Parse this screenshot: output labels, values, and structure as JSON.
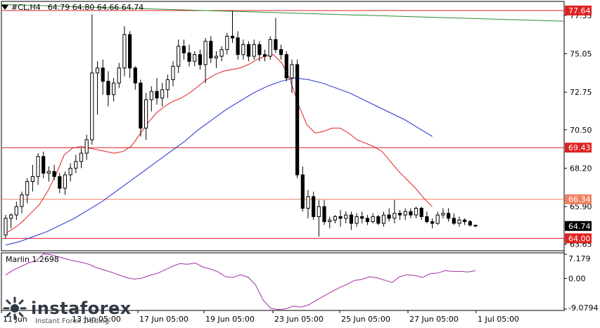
{
  "header": {
    "symbol": "#CL,H4",
    "ohlc": "64.79 64.80 64.66 64.74"
  },
  "price_scale": {
    "ticks": [
      "77.35",
      "75.05",
      "72.75",
      "70.50",
      "68.20",
      "65.90",
      "63.65"
    ],
    "ind_ticks": [
      "7.179",
      "0.00",
      "-9.0794"
    ],
    "badges": [
      {
        "label": "77.64",
        "value": 77.64,
        "color": "#e02020"
      },
      {
        "label": "69.43",
        "value": 69.43,
        "color": "#e02020"
      },
      {
        "label": "66.34",
        "value": 66.34,
        "color": "#f08060"
      },
      {
        "label": "64.74",
        "value": 64.74,
        "color": "#000000"
      },
      {
        "label": "64.00",
        "value": 64.0,
        "color": "#e02020"
      }
    ]
  },
  "time_axis": {
    "labels": [
      "11 Jun",
      "13 Jun 05:00",
      "17 Jun 05:00",
      "19 Jun 05:00",
      "23 Jun 05:00",
      "25 Jun 05:00",
      "27 Jun 05:00",
      "1 Jul 05:00"
    ]
  },
  "indicator": {
    "label": "Marlin 1.2698"
  },
  "watermark": {
    "brand": "instaforex",
    "tagline": "Instant Forex Trading"
  },
  "colors": {
    "candle": "#000000",
    "ma_fast": "#e02020",
    "ma_slow": "#1f2fd0",
    "trend": "#2e8b2e",
    "oscillator": "#a030a0",
    "level": "#e02020",
    "level_light": "#f08060"
  },
  "chart_data": {
    "type": "candlestick",
    "ylim": [
      63.3,
      78.1
    ],
    "levels": [
      77.64,
      69.43,
      66.34,
      64.0
    ],
    "candles": [
      [
        64.2,
        65.4,
        64.0,
        65.2
      ],
      [
        65.2,
        65.5,
        64.6,
        65.4
      ],
      [
        65.4,
        66.2,
        65.1,
        65.9
      ],
      [
        65.9,
        66.8,
        65.5,
        66.6
      ],
      [
        66.6,
        67.6,
        66.1,
        67.4
      ],
      [
        67.4,
        68.4,
        66.8,
        67.7
      ],
      [
        67.7,
        69.1,
        67.2,
        68.9
      ],
      [
        68.9,
        69.2,
        67.6,
        67.9
      ],
      [
        67.9,
        68.3,
        67.4,
        68.0
      ],
      [
        68.0,
        68.4,
        67.5,
        67.7
      ],
      [
        67.7,
        67.9,
        66.7,
        67.0
      ],
      [
        67.0,
        68.0,
        66.6,
        67.8
      ],
      [
        67.8,
        68.5,
        67.4,
        68.2
      ],
      [
        68.2,
        69.0,
        67.9,
        68.6
      ],
      [
        68.6,
        69.4,
        68.2,
        69.1
      ],
      [
        69.1,
        70.2,
        68.7,
        69.9
      ],
      [
        69.9,
        77.4,
        69.6,
        73.9
      ],
      [
        73.9,
        74.6,
        71.4,
        74.2
      ],
      [
        74.2,
        74.7,
        72.6,
        73.4
      ],
      [
        73.4,
        74.0,
        71.9,
        72.6
      ],
      [
        72.6,
        73.6,
        72.2,
        73.3
      ],
      [
        73.3,
        74.5,
        73.0,
        74.2
      ],
      [
        74.2,
        76.7,
        73.7,
        76.2
      ],
      [
        76.2,
        76.4,
        73.6,
        74.2
      ],
      [
        74.2,
        74.3,
        72.9,
        73.3
      ],
      [
        73.3,
        73.5,
        70.1,
        70.6
      ],
      [
        70.6,
        72.7,
        69.9,
        72.3
      ],
      [
        72.3,
        73.1,
        71.6,
        72.8
      ],
      [
        72.8,
        73.6,
        72.0,
        72.4
      ],
      [
        72.4,
        73.3,
        71.9,
        72.9
      ],
      [
        72.9,
        73.8,
        72.4,
        73.5
      ],
      [
        73.5,
        74.6,
        73.1,
        74.3
      ],
      [
        74.3,
        75.9,
        73.9,
        75.5
      ],
      [
        75.5,
        75.9,
        74.7,
        75.1
      ],
      [
        75.1,
        75.6,
        74.3,
        74.6
      ],
      [
        74.6,
        75.2,
        74.3,
        75.0
      ],
      [
        75.0,
        75.3,
        74.1,
        74.4
      ],
      [
        74.4,
        76.0,
        73.3,
        75.8
      ],
      [
        75.8,
        76.1,
        74.5,
        74.8
      ],
      [
        74.8,
        75.2,
        74.2,
        74.9
      ],
      [
        74.9,
        75.5,
        74.6,
        75.3
      ],
      [
        75.3,
        76.3,
        75.0,
        76.1
      ],
      [
        76.1,
        77.6,
        75.7,
        76.0
      ],
      [
        76.0,
        76.4,
        74.7,
        75.0
      ],
      [
        75.0,
        75.9,
        74.7,
        75.6
      ],
      [
        75.6,
        75.8,
        74.6,
        74.9
      ],
      [
        74.9,
        75.9,
        74.7,
        75.6
      ],
      [
        75.6,
        75.8,
        74.6,
        75.0
      ],
      [
        75.0,
        75.3,
        74.6,
        74.9
      ],
      [
        74.9,
        76.1,
        74.7,
        75.9
      ],
      [
        75.9,
        77.2,
        75.1,
        75.3
      ],
      [
        75.3,
        75.6,
        74.7,
        75.0
      ],
      [
        75.0,
        75.2,
        73.4,
        73.6
      ],
      [
        73.6,
        74.7,
        72.7,
        74.4
      ],
      [
        74.4,
        74.7,
        67.6,
        67.8
      ],
      [
        67.8,
        68.3,
        65.6,
        65.8
      ],
      [
        65.8,
        66.9,
        65.2,
        66.5
      ],
      [
        66.5,
        66.8,
        65.1,
        65.3
      ],
      [
        65.3,
        66.3,
        64.1,
        65.9
      ],
      [
        65.9,
        66.3,
        64.8,
        65.0
      ],
      [
        65.0,
        65.3,
        64.6,
        65.1
      ],
      [
        65.1,
        65.4,
        64.9,
        65.3
      ],
      [
        65.3,
        65.7,
        64.7,
        65.2
      ],
      [
        65.2,
        65.6,
        64.9,
        65.4
      ],
      [
        65.4,
        65.6,
        64.5,
        64.9
      ],
      [
        64.9,
        65.5,
        64.7,
        65.3
      ],
      [
        65.3,
        65.6,
        64.9,
        65.2
      ],
      [
        65.2,
        65.4,
        64.8,
        65.0
      ],
      [
        65.0,
        65.5,
        64.9,
        65.3
      ],
      [
        65.3,
        65.4,
        64.8,
        64.9
      ],
      [
        64.9,
        65.6,
        64.7,
        65.4
      ],
      [
        65.4,
        65.8,
        65.0,
        65.2
      ],
      [
        65.2,
        66.3,
        64.9,
        65.5
      ],
      [
        65.5,
        65.7,
        65.1,
        65.4
      ],
      [
        65.4,
        65.8,
        65.1,
        65.6
      ],
      [
        65.6,
        65.8,
        65.2,
        65.4
      ],
      [
        65.4,
        65.9,
        65.2,
        65.8
      ],
      [
        65.8,
        65.9,
        65.1,
        65.3
      ],
      [
        65.3,
        65.6,
        64.9,
        65.0
      ],
      [
        65.0,
        65.2,
        64.6,
        64.9
      ],
      [
        64.9,
        65.6,
        64.8,
        65.4
      ],
      [
        65.4,
        65.8,
        65.2,
        65.5
      ],
      [
        65.5,
        65.8,
        65.0,
        65.2
      ],
      [
        65.2,
        65.5,
        64.8,
        64.9
      ],
      [
        64.9,
        65.3,
        64.7,
        65.1
      ],
      [
        65.1,
        65.2,
        64.8,
        65.0
      ],
      [
        65.0,
        65.1,
        64.7,
        64.8
      ],
      [
        64.79,
        64.8,
        64.66,
        64.74
      ]
    ],
    "ma_fast": [
      64.3,
      64.6,
      65.0,
      65.5,
      66.0,
      66.8,
      67.8,
      69.0,
      69.4,
      69.5,
      69.4,
      69.3,
      69.2,
      69.1,
      69.2,
      69.5,
      70.2,
      70.9,
      71.5,
      71.9,
      72.2,
      72.4,
      72.7,
      73.1,
      73.5,
      73.8,
      74.0,
      74.1,
      74.2,
      74.4,
      74.7,
      74.9,
      75.0,
      74.5,
      73.5,
      72.0,
      70.8,
      70.3,
      70.4,
      70.6,
      70.6,
      70.3,
      69.9,
      69.7,
      69.5,
      69.2,
      68.6,
      68.0,
      67.5,
      67.0,
      66.4,
      65.9
    ],
    "ma_slow": [
      63.6,
      63.8,
      64.1,
      64.4,
      64.8,
      65.2,
      65.7,
      66.2,
      66.8,
      67.4,
      68.0,
      68.6,
      69.2,
      69.8,
      70.5,
      71.1,
      71.7,
      72.2,
      72.7,
      73.1,
      73.4,
      73.6,
      73.5,
      73.3,
      73.0,
      72.7,
      72.3,
      71.9,
      71.5,
      71.1,
      70.6,
      70.1
    ],
    "trend": [
      78.0,
      77.0
    ],
    "oscillator": [
      1.0,
      2.5,
      3.5,
      4.6,
      5.2,
      7.3,
      7.0,
      6.4,
      5.8,
      5.2,
      4.8,
      4.2,
      3.2,
      2.5,
      1.8,
      1.0,
      0.2,
      -0.2,
      0.1,
      0.9,
      1.5,
      2.5,
      3.6,
      4.4,
      4.2,
      4.6,
      3.4,
      2.8,
      2.0,
      0.5,
      0.3,
      1.1,
      0.4,
      -2.0,
      -6.5,
      -8.9,
      -9.2,
      -9.0,
      -8.2,
      -8.5,
      -7.8,
      -6.5,
      -5.2,
      -4.0,
      -2.8,
      -1.8,
      -0.6,
      -0.3,
      0.5,
      0.2,
      -0.5,
      -1.2,
      0.5,
      1.1,
      0.9,
      0.3,
      1.4,
      1.6,
      2.3,
      2.1,
      2.1,
      1.9,
      2.3
    ]
  }
}
